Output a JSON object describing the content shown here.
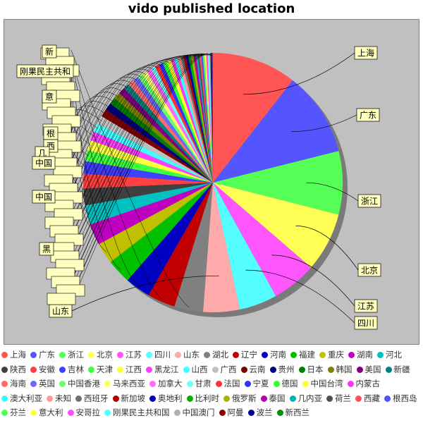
{
  "chart_data": {
    "type": "pie",
    "title": "vido published location",
    "labels": [
      "上海",
      "广东",
      "浙江",
      "北京",
      "江苏",
      "四川",
      "山东",
      "湖北",
      "辽宁",
      "河南",
      "福建",
      "重庆",
      "湖南",
      "河北",
      "陕西",
      "安徽",
      "吉林",
      "天津",
      "江西",
      "黑龙江",
      "山西",
      "广西",
      "云南",
      "贵州",
      "日本",
      "韩国",
      "美国",
      "新疆",
      "海南",
      "英国",
      "中国香港",
      "马来西亚",
      "加拿大",
      "甘肃",
      "法国",
      "宁夏",
      "德国",
      "中国台湾",
      "内蒙古",
      "澳大利亚",
      "未知",
      "西班牙",
      "新加坡",
      "奥地利",
      "比利时",
      "俄罗斯",
      "泰国",
      "几内亚",
      "荷兰",
      "西藏",
      "根西岛",
      "芬兰",
      "意大利",
      "安哥拉",
      "刚果民主共和国",
      "中国澳门",
      "阿曼",
      "波兰",
      "新西兰"
    ],
    "values": [
      10.0,
      10.0,
      7.5,
      7.0,
      5.3,
      4.5,
      4.3,
      3.4,
      3.3,
      3.0,
      2.9,
      2.5,
      2.5,
      2.3,
      2.0,
      1.7,
      1.5,
      1.3,
      1.2,
      1.1,
      1.0,
      1.0,
      0.9,
      0.9,
      0.8,
      0.8,
      0.8,
      0.7,
      0.7,
      0.7,
      0.6,
      0.6,
      0.6,
      0.5,
      0.5,
      0.5,
      0.5,
      0.5,
      0.4,
      0.4,
      0.4,
      0.3,
      0.3,
      0.3,
      0.3,
      0.3,
      0.3,
      0.2,
      0.2,
      0.2,
      0.2,
      0.2,
      0.2,
      0.2,
      0.2,
      0.1,
      0.1,
      0.1,
      0.1
    ],
    "colors": [
      "#ff5555",
      "#5555ff",
      "#55ff55",
      "#ffff55",
      "#ff55ff",
      "#55ffff",
      "#ffaaaa",
      "#808080",
      "#c00000",
      "#0000c0",
      "#00c000",
      "#c0c000",
      "#c000c0",
      "#00c0c0",
      "#404040",
      "#ff4040",
      "#4040ff",
      "#40ff40",
      "#ffff40",
      "#ff40ff",
      "#40ffff",
      "#c0c0c0",
      "#800000",
      "#000080",
      "#008000",
      "#808000",
      "#800080",
      "#008080",
      "#ff6a6a",
      "#6a6aff",
      "#6aff6a",
      "#ffff6a",
      "#ff6aff",
      "#6affff",
      "#ff3333",
      "#3333ff",
      "#33ff33",
      "#ffff33",
      "#ff33ff",
      "#33ffff",
      "#ff9999",
      "#707070",
      "#b00000",
      "#0000b0",
      "#00b000",
      "#b0b000",
      "#b000b0",
      "#00b0b0",
      "#505050",
      "#ff5050",
      "#5050ff",
      "#50ff50",
      "#ffff50",
      "#ff50ff",
      "#50ffff",
      "#b0b0b0",
      "#900000",
      "#000090",
      "#009000"
    ],
    "callout_labels": [
      "上海",
      "广东",
      "浙江",
      "北京",
      "江苏",
      "四川",
      "山东",
      "黑",
      "中国",
      "中国",
      "澳",
      "西",
      "几",
      "根",
      "意",
      "刚果民主共和",
      "新"
    ],
    "legend_placement": "bottom"
  }
}
